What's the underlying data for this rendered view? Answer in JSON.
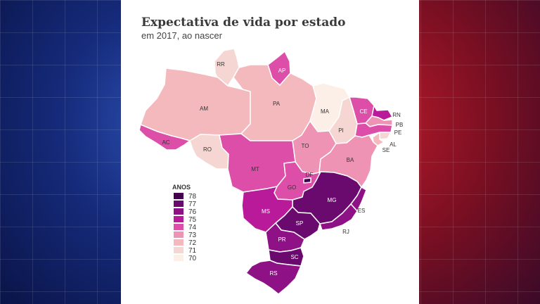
{
  "title": "Expectativa de vida por estado",
  "subtitle": "em 2017, ao nascer",
  "legend": {
    "title": "ANOS",
    "items": [
      {
        "value": "78",
        "color": "#43004f"
      },
      {
        "value": "77",
        "color": "#6b0a6e"
      },
      {
        "value": "76",
        "color": "#8e1286"
      },
      {
        "value": "75",
        "color": "#b81a9a"
      },
      {
        "value": "74",
        "color": "#dd4ea8"
      },
      {
        "value": "73",
        "color": "#ee93b3"
      },
      {
        "value": "72",
        "color": "#f4b9bd"
      },
      {
        "value": "71",
        "color": "#f6d6d2"
      },
      {
        "value": "70",
        "color": "#fcefe8"
      }
    ]
  },
  "states": [
    {
      "code": "RR",
      "years": 71
    },
    {
      "code": "AP",
      "years": 74
    },
    {
      "code": "AM",
      "years": 72
    },
    {
      "code": "PA",
      "years": 72
    },
    {
      "code": "MA",
      "years": 70
    },
    {
      "code": "PI",
      "years": 71
    },
    {
      "code": "CE",
      "years": 74
    },
    {
      "code": "RN",
      "years": 75
    },
    {
      "code": "PB",
      "years": 73
    },
    {
      "code": "PE",
      "years": 74
    },
    {
      "code": "AL",
      "years": 71
    },
    {
      "code": "SE",
      "years": 72
    },
    {
      "code": "AC",
      "years": 74
    },
    {
      "code": "RO",
      "years": 71
    },
    {
      "code": "TO",
      "years": 73
    },
    {
      "code": "BA",
      "years": 73
    },
    {
      "code": "MT",
      "years": 74
    },
    {
      "code": "DF",
      "years": 78
    },
    {
      "code": "GO",
      "years": 74
    },
    {
      "code": "MG",
      "years": 77
    },
    {
      "code": "ES",
      "years": 76
    },
    {
      "code": "MS",
      "years": 75
    },
    {
      "code": "SP",
      "years": 77
    },
    {
      "code": "RJ",
      "years": 76
    },
    {
      "code": "PR",
      "years": 76
    },
    {
      "code": "SC",
      "years": 77
    },
    {
      "code": "RS",
      "years": 76
    }
  ]
}
